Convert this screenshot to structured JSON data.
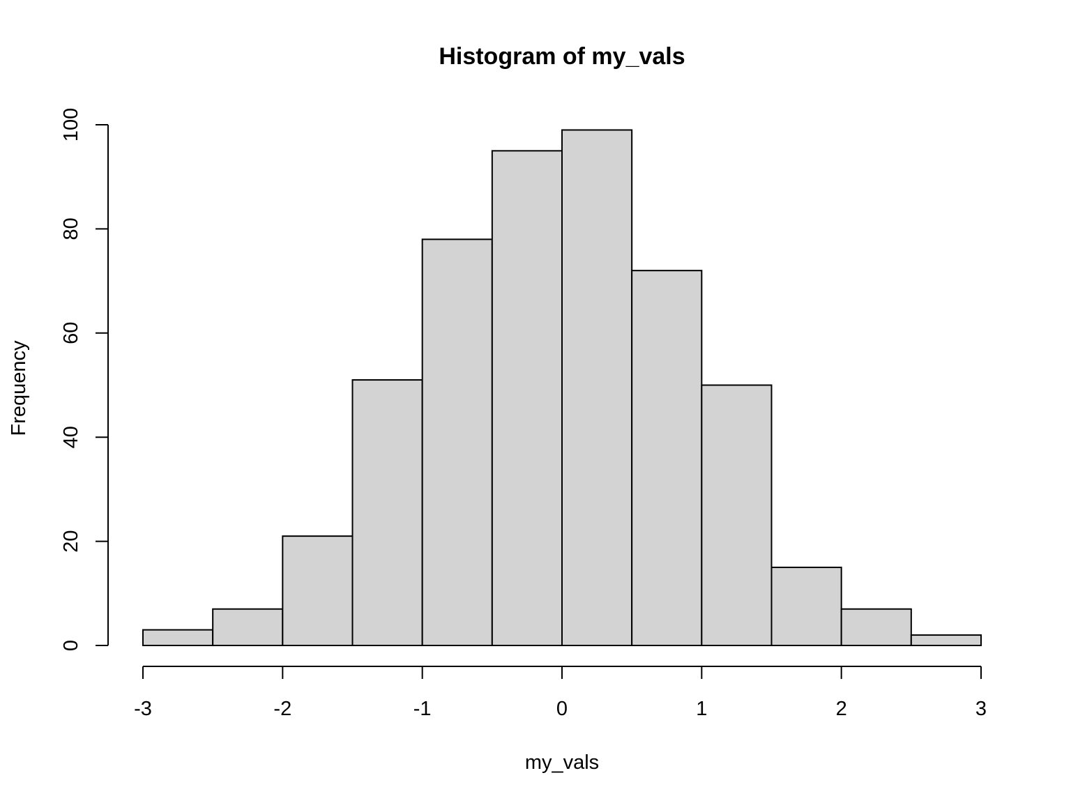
{
  "chart_data": {
    "type": "bar",
    "subtype": "histogram",
    "title": "Histogram of my_vals",
    "xlabel": "my_vals",
    "ylabel": "Frequency",
    "bin_edges": [
      -3,
      -2.5,
      -2,
      -1.5,
      -1,
      -0.5,
      0,
      0.5,
      1,
      1.5,
      2,
      2.5,
      3
    ],
    "values": [
      3,
      7,
      21,
      51,
      78,
      95,
      99,
      72,
      50,
      15,
      7,
      2
    ],
    "xlim": [
      -3,
      3
    ],
    "ylim": [
      0,
      100
    ],
    "x_ticks": [
      -3,
      -2,
      -1,
      0,
      1,
      2,
      3
    ],
    "x_tick_labels": [
      "-3",
      "-2",
      "-1",
      "0",
      "1",
      "2",
      "3"
    ],
    "y_ticks": [
      0,
      20,
      40,
      60,
      80,
      100
    ],
    "y_tick_labels": [
      "0",
      "20",
      "40",
      "60",
      "80",
      "100"
    ],
    "bar_color": "#d3d3d3",
    "edge_color": "#000000",
    "grid": false,
    "legend": "none"
  }
}
